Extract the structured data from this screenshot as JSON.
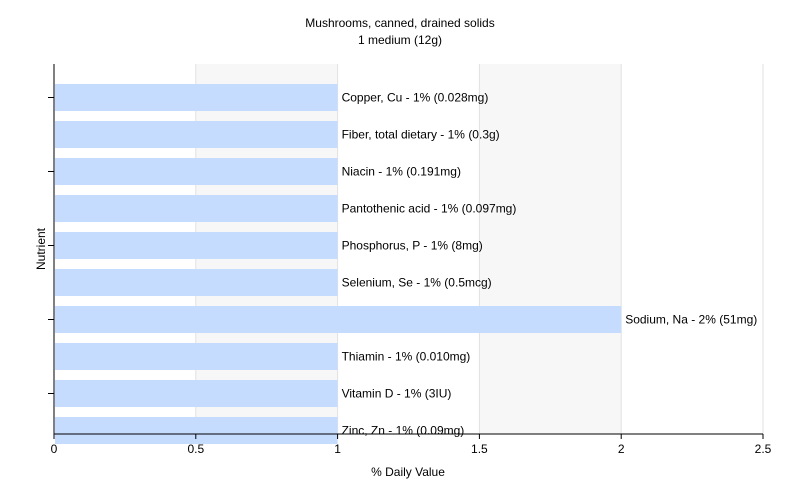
{
  "chart_data": {
    "type": "bar",
    "orientation": "horizontal",
    "title": "Mushrooms, canned, drained solids",
    "subtitle": "1 medium (12g)",
    "xlabel": "% Daily Value",
    "ylabel": "Nutrient",
    "xlim": [
      0,
      2.5
    ],
    "x_ticks": [
      "0",
      "0.5",
      "1",
      "1.5",
      "2",
      "2.5"
    ],
    "grid": true,
    "bar_color": "#c6dcff",
    "categories": [
      "Copper, Cu",
      "Fiber, total dietary",
      "Niacin",
      "Pantothenic acid",
      "Phosphorus, P",
      "Selenium, Se",
      "Sodium, Na",
      "Thiamin",
      "Vitamin D",
      "Zinc, Zn"
    ],
    "values": [
      1,
      1,
      1,
      1,
      1,
      1,
      2,
      1,
      1,
      1
    ],
    "data_labels": [
      "Copper, Cu - 1% (0.028mg)",
      "Fiber, total dietary - 1% (0.3g)",
      "Niacin - 1% (0.191mg)",
      "Pantothenic acid - 1% (0.097mg)",
      "Phosphorus, P - 1% (8mg)",
      "Selenium, Se - 1% (0.5mcg)",
      "Sodium, Na - 2% (51mg)",
      "Thiamin - 1% (0.010mg)",
      "Vitamin D - 1% (3IU)",
      "Zinc, Zn - 1% (0.09mg)"
    ]
  }
}
